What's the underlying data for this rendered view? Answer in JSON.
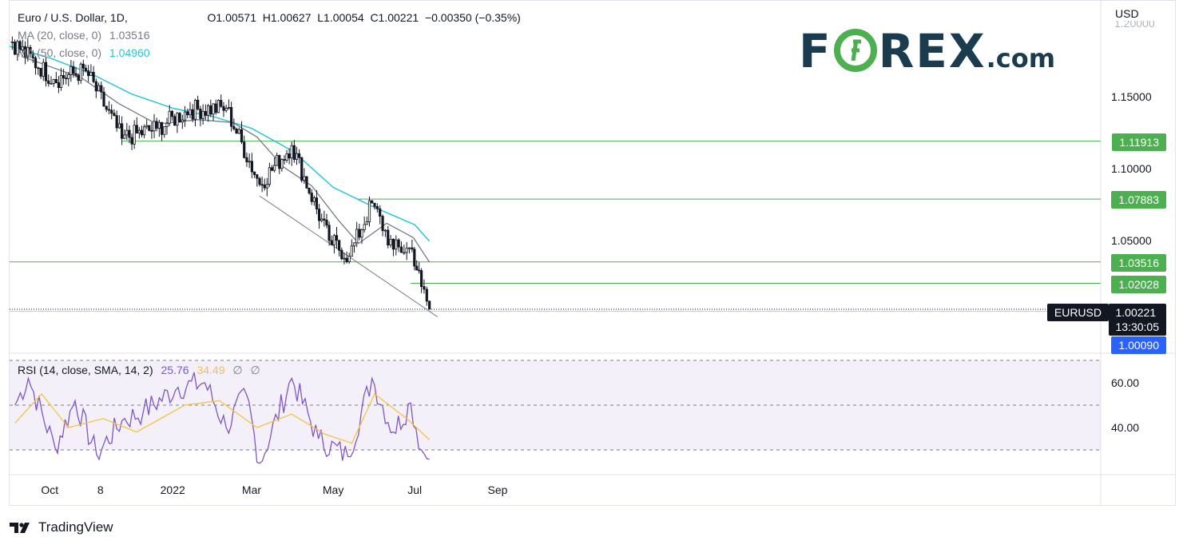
{
  "header": {
    "symbol_desc": "Euro / U.S. Dollar, 1D,",
    "ohlc": "O1.00571  H1.00627  L1.00054  C1.00221  −0.00350 (−0.35%)",
    "ma20_label": "MA (20, close, 0)",
    "ma20_value": "1.03516",
    "ma50_label": "MA (50, close, 0)",
    "ma50_value": "1.04960"
  },
  "price_axis": {
    "currency": "USD",
    "top_partial": "1.20000"
  },
  "levels": [
    {
      "label": "1.11913",
      "value": 1.11913
    },
    {
      "label": "1.07883",
      "value": 1.07883
    },
    {
      "label": "1.03516",
      "value": 1.03516
    },
    {
      "label": "1.02028",
      "value": 1.02028
    }
  ],
  "current": {
    "symbol": "EURUSD",
    "price": "1.00221",
    "countdown": "13:30:05",
    "low_label": "1.00090"
  },
  "rsi": {
    "label": "RSI (14, close, SMA, 14, 2)",
    "value": "25.76",
    "sma_value": "34.49",
    "na1": "∅",
    "na2": "∅"
  },
  "colors": {
    "ma20": "#787b86",
    "ma50": "#26c6da",
    "rsi": "#7e57c2",
    "rsi_sma": "#f5c242",
    "level": "#4caf50",
    "candle": "#131722"
  },
  "footer": {
    "brand": "TradingView"
  },
  "logo": {
    "text_left": "F",
    "text_right": "REX",
    "suffix": ".com"
  },
  "chart_data": [
    {
      "type": "line",
      "title": "Euro / U.S. Dollar, 1D",
      "ylabel": "USD",
      "xlabel": "",
      "ylim": [
        0.97,
        1.21
      ],
      "yticks": [
        1.15,
        1.1,
        1.05
      ],
      "xticks": [
        "Oct",
        "8",
        "2022",
        "Mar",
        "May",
        "Jul",
        "Sep"
      ],
      "grid": false,
      "series": [
        {
          "name": "MA (20, close, 0)",
          "x": [
            "2021-09-10",
            "2021-10-01",
            "2021-10-25",
            "2021-11-22",
            "2021-12-20",
            "2022-01-20",
            "2022-02-15",
            "2022-03-05",
            "2022-03-25",
            "2022-04-15",
            "2022-05-05",
            "2022-05-20",
            "2022-06-10",
            "2022-06-30",
            "2022-07-12"
          ],
          "values": [
            1.178,
            1.171,
            1.163,
            1.145,
            1.131,
            1.134,
            1.132,
            1.122,
            1.101,
            1.088,
            1.064,
            1.048,
            1.062,
            1.052,
            1.035
          ]
        },
        {
          "name": "MA (50, close, 0)",
          "x": [
            "2021-09-01",
            "2021-10-01",
            "2021-11-01",
            "2021-12-01",
            "2022-01-01",
            "2022-02-01",
            "2022-03-01",
            "2022-04-01",
            "2022-05-01",
            "2022-06-01",
            "2022-07-01",
            "2022-07-12"
          ],
          "values": [
            1.185,
            1.177,
            1.166,
            1.152,
            1.142,
            1.136,
            1.128,
            1.112,
            1.087,
            1.073,
            1.061,
            1.0496
          ]
        },
        {
          "name": "EURUSD close",
          "x": [
            "2021-09-03",
            "2021-10-04",
            "2021-10-28",
            "2021-11-24",
            "2021-12-20",
            "2022-01-14",
            "2022-02-10",
            "2022-03-07",
            "2022-03-31",
            "2022-04-28",
            "2022-05-13",
            "2022-05-30",
            "2022-06-15",
            "2022-06-29",
            "2022-07-06",
            "2022-07-12"
          ],
          "values": [
            1.188,
            1.162,
            1.168,
            1.121,
            1.128,
            1.141,
            1.142,
            1.089,
            1.116,
            1.05,
            1.039,
            1.076,
            1.044,
            1.044,
            1.018,
            1.0022
          ]
        }
      ],
      "levels": [
        1.11913,
        1.07883,
        1.03516,
        1.02028
      ],
      "trendline": {
        "x": [
          "2022-03-07",
          "2022-07-18"
        ],
        "values": [
          1.081,
          0.997
        ]
      }
    },
    {
      "type": "line",
      "title": "RSI (14, close, SMA, 14, 2)",
      "ylim": [
        15,
        78
      ],
      "yticks": [
        60,
        40
      ],
      "bands": [
        70,
        50,
        30
      ],
      "series": [
        {
          "name": "RSI",
          "x": [
            "2021-09-05",
            "2021-09-15",
            "2021-10-05",
            "2021-10-20",
            "2021-11-05",
            "2021-11-24",
            "2021-12-10",
            "2022-01-05",
            "2022-01-25",
            "2022-02-10",
            "2022-02-25",
            "2022-03-07",
            "2022-03-31",
            "2022-04-20",
            "2022-05-12",
            "2022-05-30",
            "2022-06-15",
            "2022-06-28",
            "2022-07-06",
            "2022-07-12"
          ],
          "values": [
            50,
            62,
            31,
            52,
            28,
            43,
            47,
            58,
            60,
            40,
            55,
            24,
            62,
            35,
            27,
            62,
            38,
            51,
            30,
            25.76
          ]
        },
        {
          "name": "RSI SMA",
          "x": [
            "2021-09-05",
            "2021-09-25",
            "2021-10-15",
            "2021-11-10",
            "2021-12-05",
            "2022-01-10",
            "2022-02-05",
            "2022-03-05",
            "2022-03-31",
            "2022-04-25",
            "2022-05-15",
            "2022-06-01",
            "2022-06-25",
            "2022-07-12"
          ],
          "values": [
            42,
            55,
            40,
            44,
            38,
            50,
            52,
            40,
            46,
            37,
            33,
            55,
            44,
            34.49
          ]
        }
      ]
    }
  ]
}
